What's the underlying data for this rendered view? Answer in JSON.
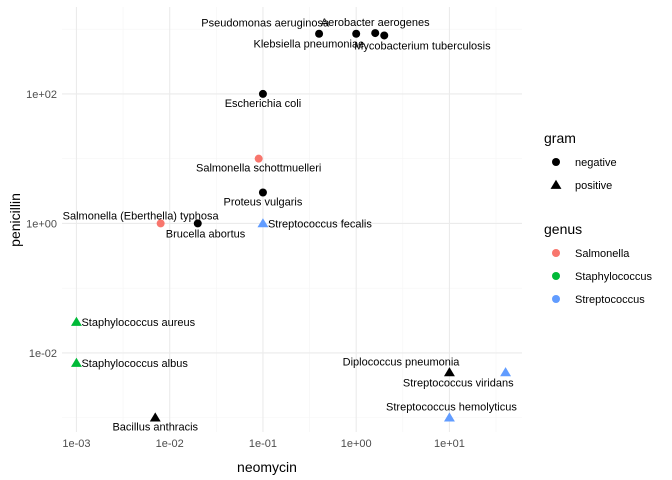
{
  "chart_data": {
    "type": "scatter",
    "xlabel": "neomycin",
    "ylabel": "penicillin",
    "x_scale": "log10",
    "y_scale": "log10",
    "xlim": [
      0.0007,
      60
    ],
    "ylim": [
      0.0006,
      2200
    ],
    "x_ticks": [
      0.001,
      0.01,
      0.1,
      1,
      10
    ],
    "x_tick_labels": [
      "1e-03",
      "1e-02",
      "1e-01",
      "1e+00",
      "1e+01"
    ],
    "y_ticks": [
      0.01,
      1,
      100
    ],
    "y_tick_labels": [
      "1e-02",
      "1e+00",
      "1e+02"
    ],
    "grid": true,
    "legend_position": "right",
    "legends": [
      {
        "title": "gram",
        "entries": [
          {
            "label": "negative",
            "shape": "circle",
            "color": "#000000"
          },
          {
            "label": "positive",
            "shape": "triangle",
            "color": "#000000"
          }
        ]
      },
      {
        "title": "genus",
        "entries": [
          {
            "label": "Salmonella",
            "shape": "circle",
            "color": "#F8766D"
          },
          {
            "label": "Staphylococcus",
            "shape": "circle",
            "color": "#00BA38"
          },
          {
            "label": "Streptococcus",
            "shape": "circle",
            "color": "#619CFF"
          }
        ]
      }
    ],
    "points": [
      {
        "label": "Pseudomonas aeruginosa",
        "x": 0.4,
        "y": 850,
        "gram": "negative",
        "genus": "other",
        "label_pos": "above-left"
      },
      {
        "label": "Aerobacter aerogenes",
        "x": 1.6,
        "y": 870,
        "gram": "negative",
        "genus": "other",
        "label_pos": "above"
      },
      {
        "label": "Klebsiella pneumoniae",
        "x": 1,
        "y": 850,
        "gram": "negative",
        "genus": "other",
        "label_pos": "below-left"
      },
      {
        "label": "Mycobacterium tuberculosis",
        "x": 2,
        "y": 800,
        "gram": "negative",
        "genus": "other",
        "label_pos": "below-right"
      },
      {
        "label": "Escherichia coli",
        "x": 0.1,
        "y": 100,
        "gram": "negative",
        "genus": "other",
        "label_pos": "below"
      },
      {
        "label": "Salmonella schottmuelleri",
        "x": 0.09,
        "y": 10,
        "gram": "negative",
        "genus": "Salmonella",
        "label_pos": "below"
      },
      {
        "label": "Proteus vulgaris",
        "x": 0.1,
        "y": 3,
        "gram": "negative",
        "genus": "other",
        "label_pos": "below"
      },
      {
        "label": "Salmonella (Eberthella) typhosa",
        "x": 0.008,
        "y": 1,
        "gram": "negative",
        "genus": "Salmonella",
        "label_pos": "above-right"
      },
      {
        "label": "Brucella abortus",
        "x": 0.02,
        "y": 1,
        "gram": "negative",
        "genus": "other",
        "label_pos": "below-right"
      },
      {
        "label": "Streptococcus fecalis",
        "x": 0.1,
        "y": 1,
        "gram": "positive",
        "genus": "Streptococcus",
        "label_pos": "right"
      },
      {
        "label": "Staphylococcus aureus",
        "x": 0.001,
        "y": 0.03,
        "gram": "positive",
        "genus": "Staphylococcus",
        "label_pos": "right"
      },
      {
        "label": "Staphylococcus albus",
        "x": 0.001,
        "y": 0.007,
        "gram": "positive",
        "genus": "Staphylococcus",
        "label_pos": "right"
      },
      {
        "label": "Bacillus anthracis",
        "x": 0.007,
        "y": 0.001,
        "gram": "positive",
        "genus": "other",
        "label_pos": "below"
      },
      {
        "label": "Diplococcus pneumonia",
        "x": 10,
        "y": 0.005,
        "gram": "positive",
        "genus": "other",
        "label_pos": "above-left"
      },
      {
        "label": "Streptococcus viridans",
        "x": 40,
        "y": 0.005,
        "gram": "positive",
        "genus": "Streptococcus",
        "label_pos": "below-left"
      },
      {
        "label": "Streptococcus hemolyticus",
        "x": 10,
        "y": 0.001,
        "gram": "positive",
        "genus": "Streptococcus",
        "label_pos": "above"
      }
    ]
  },
  "colors": {
    "panel_grid_major": "#EBEBEB",
    "panel_grid_minor": "#F5F5F5",
    "axis_text": "#4D4D4D",
    "label_text": "#000000",
    "default_point": "#000000",
    "Salmonella": "#F8766D",
    "Staphylococcus": "#00BA38",
    "Streptococcus": "#619CFF"
  }
}
